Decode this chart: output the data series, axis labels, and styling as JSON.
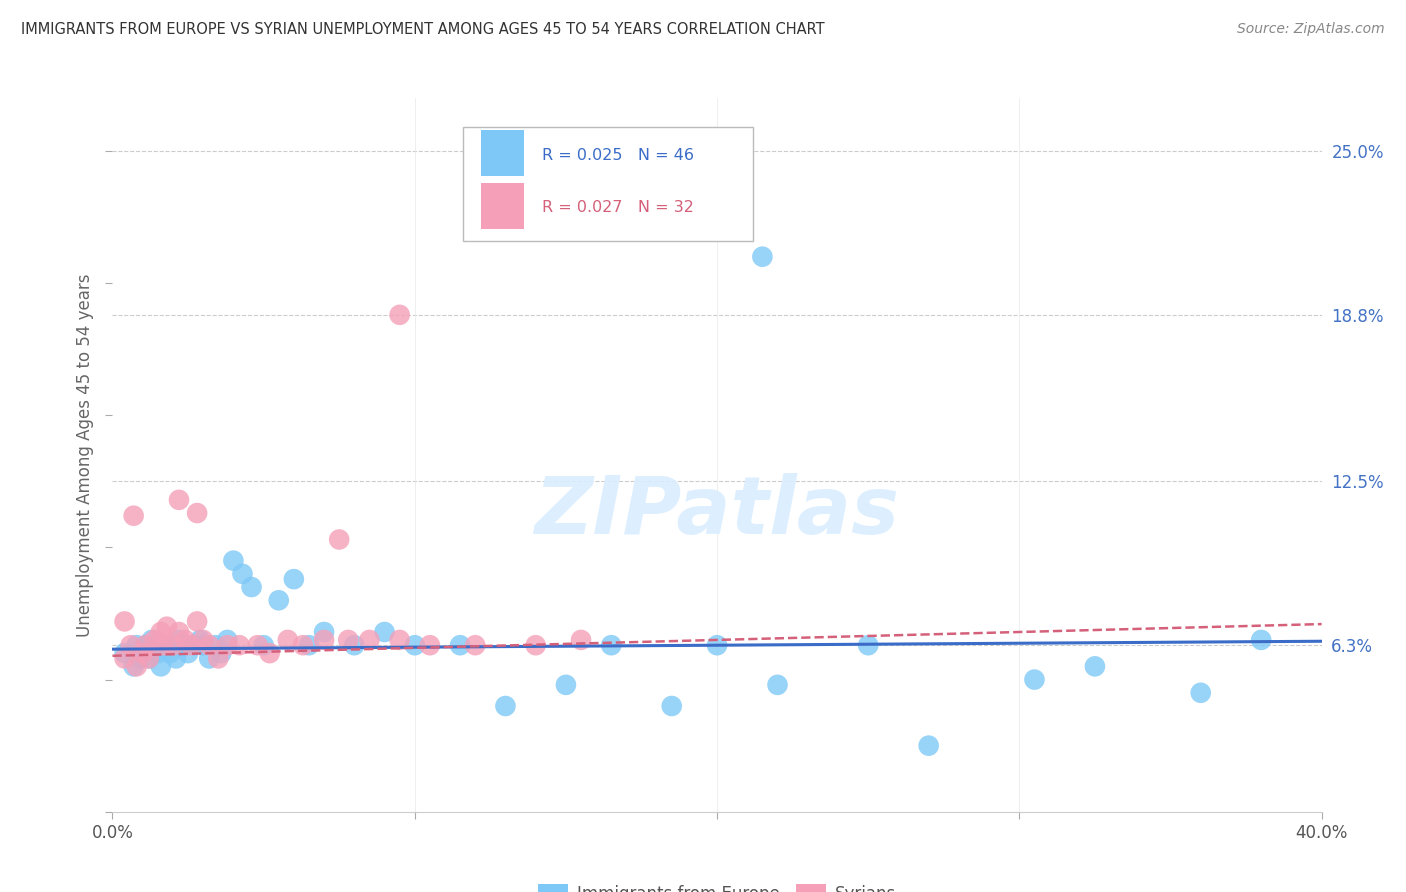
{
  "title": "IMMIGRANTS FROM EUROPE VS SYRIAN UNEMPLOYMENT AMONG AGES 45 TO 54 YEARS CORRELATION CHART",
  "source": "Source: ZipAtlas.com",
  "ylabel": "Unemployment Among Ages 45 to 54 years",
  "xlim": [
    0.0,
    0.4
  ],
  "ylim": [
    0.0,
    0.27
  ],
  "yticks": [
    0.063,
    0.125,
    0.188,
    0.25
  ],
  "yticklabels": [
    "6.3%",
    "12.5%",
    "18.8%",
    "25.0%"
  ],
  "xticks": [
    0.0,
    0.1,
    0.2,
    0.3,
    0.4
  ],
  "xticklabels": [
    "0.0%",
    "",
    "",
    "",
    "40.0%"
  ],
  "grid_color": "#cccccc",
  "background_color": "#ffffff",
  "blue_color": "#7ec8f7",
  "pink_color": "#f5a0b8",
  "blue_line_color": "#3b6cc7",
  "pink_line_color": "#d4607a",
  "legend_R_blue": "R = 0.025",
  "legend_N_blue": "N = 46",
  "legend_R_pink": "R = 0.027",
  "legend_N_pink": "N = 32",
  "watermark": "ZIPatlas",
  "blue_scatter_x": [
    0.004,
    0.007,
    0.008,
    0.009,
    0.011,
    0.012,
    0.013,
    0.015,
    0.016,
    0.018,
    0.019,
    0.021,
    0.022,
    0.023,
    0.025,
    0.027,
    0.029,
    0.03,
    0.032,
    0.034,
    0.036,
    0.038,
    0.04,
    0.043,
    0.046,
    0.05,
    0.055,
    0.06,
    0.065,
    0.07,
    0.08,
    0.09,
    0.1,
    0.115,
    0.13,
    0.15,
    0.165,
    0.185,
    0.2,
    0.22,
    0.25,
    0.27,
    0.305,
    0.325,
    0.36,
    0.38
  ],
  "blue_scatter_y": [
    0.06,
    0.055,
    0.063,
    0.058,
    0.063,
    0.058,
    0.065,
    0.06,
    0.055,
    0.063,
    0.06,
    0.058,
    0.065,
    0.063,
    0.06,
    0.063,
    0.065,
    0.063,
    0.058,
    0.063,
    0.06,
    0.065,
    0.095,
    0.09,
    0.085,
    0.063,
    0.08,
    0.088,
    0.063,
    0.068,
    0.063,
    0.068,
    0.063,
    0.063,
    0.04,
    0.048,
    0.063,
    0.04,
    0.063,
    0.048,
    0.063,
    0.025,
    0.05,
    0.055,
    0.045,
    0.065
  ],
  "blue_outlier_x": [
    0.215
  ],
  "blue_outlier_y": [
    0.21
  ],
  "pink_scatter_x": [
    0.004,
    0.006,
    0.008,
    0.01,
    0.011,
    0.012,
    0.014,
    0.016,
    0.017,
    0.018,
    0.02,
    0.022,
    0.024,
    0.026,
    0.028,
    0.03,
    0.032,
    0.035,
    0.038,
    0.042,
    0.048,
    0.052,
    0.058,
    0.063,
    0.07,
    0.078,
    0.085,
    0.095,
    0.105,
    0.12,
    0.14,
    0.155
  ],
  "pink_scatter_y": [
    0.058,
    0.063,
    0.055,
    0.06,
    0.063,
    0.058,
    0.065,
    0.068,
    0.063,
    0.07,
    0.063,
    0.068,
    0.065,
    0.063,
    0.072,
    0.065,
    0.063,
    0.058,
    0.063,
    0.063,
    0.063,
    0.06,
    0.065,
    0.063,
    0.065,
    0.065,
    0.065,
    0.065,
    0.063,
    0.063,
    0.063,
    0.065
  ],
  "pink_outlier_x": [
    0.004,
    0.007,
    0.022,
    0.028,
    0.075,
    0.095
  ],
  "pink_outlier_y": [
    0.072,
    0.112,
    0.118,
    0.113,
    0.103,
    0.188
  ],
  "blue_trend_x": [
    0.0,
    0.4
  ],
  "blue_trend_y": [
    0.0615,
    0.0645
  ],
  "pink_trend_x": [
    0.0,
    0.4
  ],
  "pink_trend_y": [
    0.059,
    0.071
  ]
}
